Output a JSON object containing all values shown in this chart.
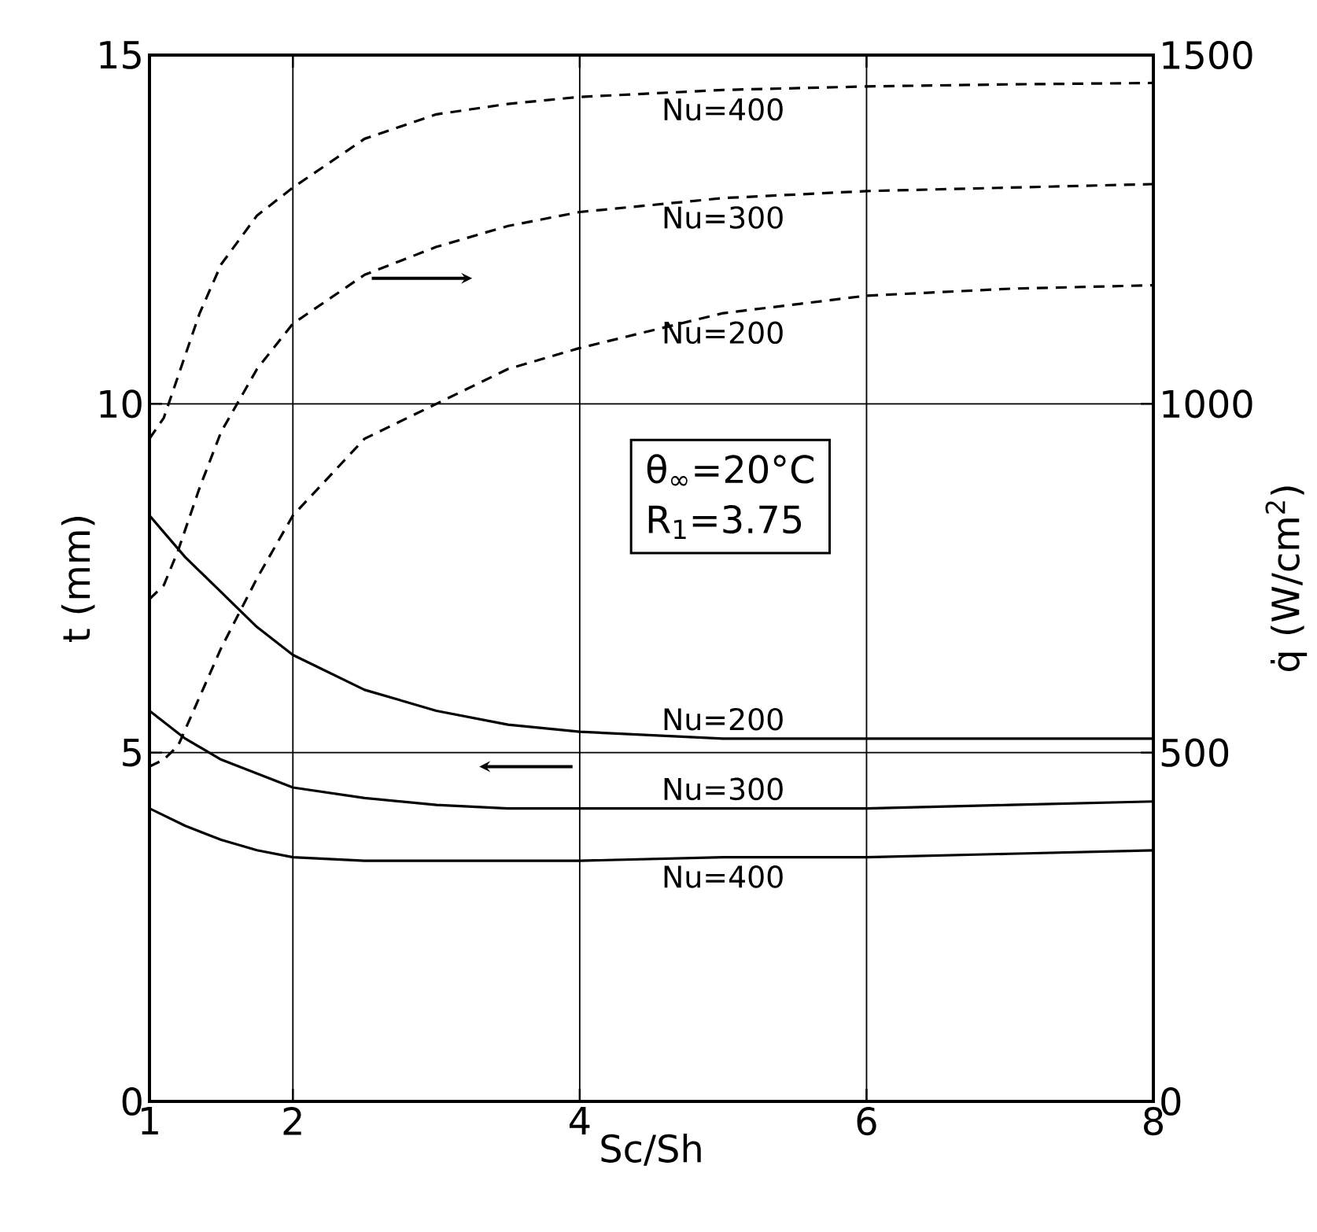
{
  "chart_data": {
    "type": "line",
    "xlabel": "Sc/Sh",
    "ylabel": "t (mm)",
    "y2label": "q̇ (W/cm$^{2}$)",
    "xlim": [
      1,
      8
    ],
    "xticks": [
      1,
      2,
      4,
      6,
      8
    ],
    "ylim": [
      0,
      15
    ],
    "yticks": [
      0,
      5,
      10,
      15
    ],
    "y2lim": [
      0,
      1500
    ],
    "y2ticks": [
      0,
      500,
      1000,
      1500
    ],
    "grid": true,
    "marker": "none",
    "annotations": [
      "θ$_{∞}$=20°C",
      "R$_{1}$=3.75"
    ],
    "series": [
      {
        "name": "Nu=200",
        "color": "#000000",
        "line_style": "solid",
        "x": [
          1,
          1.25,
          1.5,
          1.75,
          2,
          2.5,
          3,
          3.5,
          4,
          5,
          6,
          7,
          8
        ],
        "values": [
          8.4,
          7.8,
          7.3,
          6.8,
          6.4,
          5.9,
          5.6,
          5.4,
          5.3,
          5.2,
          5.2,
          5.2,
          5.2
        ]
      },
      {
        "name": "Nu=300",
        "color": "#000000",
        "line_style": "solid",
        "x": [
          1,
          1.25,
          1.5,
          1.75,
          2,
          2.5,
          3,
          3.5,
          4,
          5,
          6,
          7,
          8
        ],
        "values": [
          5.6,
          5.2,
          4.9,
          4.7,
          4.5,
          4.35,
          4.25,
          4.2,
          4.2,
          4.2,
          4.2,
          4.25,
          4.3
        ]
      },
      {
        "name": "Nu=400",
        "color": "#000000",
        "line_style": "solid",
        "x": [
          1,
          1.25,
          1.5,
          1.75,
          2,
          2.5,
          3,
          3.5,
          4,
          5,
          6,
          7,
          8
        ],
        "values": [
          4.2,
          3.95,
          3.75,
          3.6,
          3.5,
          3.45,
          3.45,
          3.45,
          3.45,
          3.5,
          3.5,
          3.55,
          3.6
        ]
      },
      {
        "name": "Nu=400",
        "color": "#000000",
        "line_style": "dashed",
        "axis": "y2",
        "x": [
          1,
          1.1,
          1.2,
          1.35,
          1.5,
          1.75,
          2,
          2.5,
          3,
          3.5,
          4,
          5,
          6,
          7,
          8
        ],
        "values": [
          950,
          980,
          1040,
          1130,
          1200,
          1270,
          1310,
          1380,
          1415,
          1430,
          1440,
          1450,
          1455,
          1458,
          1460
        ]
      },
      {
        "name": "Nu=300",
        "color": "#000000",
        "line_style": "dashed",
        "axis": "y2",
        "x": [
          1,
          1.1,
          1.2,
          1.35,
          1.5,
          1.75,
          2,
          2.5,
          3,
          3.5,
          4,
          5,
          6,
          7,
          8
        ],
        "values": [
          720,
          740,
          790,
          880,
          960,
          1050,
          1115,
          1185,
          1225,
          1255,
          1275,
          1295,
          1305,
          1310,
          1315
        ]
      },
      {
        "name": "Nu=200",
        "color": "#000000",
        "line_style": "dashed",
        "axis": "y2",
        "x": [
          1,
          1.1,
          1.2,
          1.35,
          1.5,
          1.75,
          2,
          2.5,
          3,
          3.5,
          4,
          5,
          6,
          7,
          8
        ],
        "values": [
          480,
          490,
          510,
          580,
          650,
          750,
          840,
          950,
          1000,
          1050,
          1080,
          1130,
          1155,
          1165,
          1170
        ]
      }
    ]
  }
}
